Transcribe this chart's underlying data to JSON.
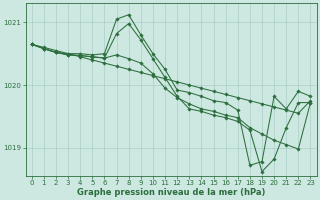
{
  "background_color": "#cce8e0",
  "grid_color": "#aacfc8",
  "line_color": "#2d6e3e",
  "xlabel": "Graphe pression niveau de la mer (hPa)",
  "xlabel_fontsize": 6.0,
  "xlabel_bold": true,
  "ylim": [
    1018.55,
    1021.3
  ],
  "xlim": [
    -0.5,
    23.5
  ],
  "yticks": [
    1019,
    1020,
    1021
  ],
  "xticks": [
    0,
    1,
    2,
    3,
    4,
    5,
    6,
    7,
    8,
    9,
    10,
    11,
    12,
    13,
    14,
    15,
    16,
    17,
    18,
    19,
    20,
    21,
    22,
    23
  ],
  "tick_fontsize": 5.0,
  "series": [
    {
      "x": [
        0,
        1,
        2,
        3,
        4,
        5,
        6,
        7,
        8,
        9,
        10,
        11,
        12,
        13,
        14,
        15,
        16,
        17,
        18,
        19,
        20,
        21,
        22,
        23
      ],
      "y": [
        1020.65,
        1020.58,
        1020.52,
        1020.5,
        1020.5,
        1020.48,
        1020.5,
        1021.05,
        1021.12,
        1020.8,
        1020.5,
        1020.25,
        1019.92,
        1019.88,
        1019.82,
        1019.75,
        1019.72,
        1019.6,
        1018.72,
        1018.78,
        1019.82,
        1019.62,
        1019.9,
        1019.82
      ]
    },
    {
      "x": [
        0,
        1,
        2,
        3,
        4,
        5,
        6,
        7,
        8,
        9,
        10,
        11,
        12,
        13,
        14,
        15,
        16,
        17,
        18,
        19,
        20,
        21,
        22,
        23
      ],
      "y": [
        1020.65,
        1020.58,
        1020.52,
        1020.48,
        1020.47,
        1020.45,
        1020.43,
        1020.48,
        1020.42,
        1020.35,
        1020.18,
        1019.95,
        1019.8,
        1019.7,
        1019.62,
        1019.58,
        1019.52,
        1019.48,
        1019.32,
        1019.22,
        1019.12,
        1019.05,
        1018.98,
        1019.72
      ]
    },
    {
      "x": [
        0,
        1,
        2,
        3,
        4,
        5,
        6,
        7,
        8,
        9,
        10,
        11,
        12,
        13,
        14,
        15,
        16,
        17,
        18,
        19,
        20,
        21,
        22,
        23
      ],
      "y": [
        1020.65,
        1020.58,
        1020.52,
        1020.48,
        1020.47,
        1020.45,
        1020.43,
        1020.82,
        1020.98,
        1020.72,
        1020.42,
        1020.12,
        1019.82,
        1019.62,
        1019.58,
        1019.52,
        1019.48,
        1019.42,
        1019.28,
        1018.62,
        1018.82,
        1019.32,
        1019.72,
        1019.72
      ]
    },
    {
      "x": [
        0,
        1,
        2,
        3,
        4,
        5,
        6,
        7,
        8,
        9,
        10,
        11,
        12,
        13,
        14,
        15,
        16,
        17,
        18,
        19,
        20,
        21,
        22,
        23
      ],
      "y": [
        1020.65,
        1020.6,
        1020.55,
        1020.5,
        1020.45,
        1020.4,
        1020.35,
        1020.3,
        1020.25,
        1020.2,
        1020.15,
        1020.1,
        1020.05,
        1020.0,
        1019.95,
        1019.9,
        1019.85,
        1019.8,
        1019.75,
        1019.7,
        1019.65,
        1019.6,
        1019.55,
        1019.75
      ]
    }
  ]
}
